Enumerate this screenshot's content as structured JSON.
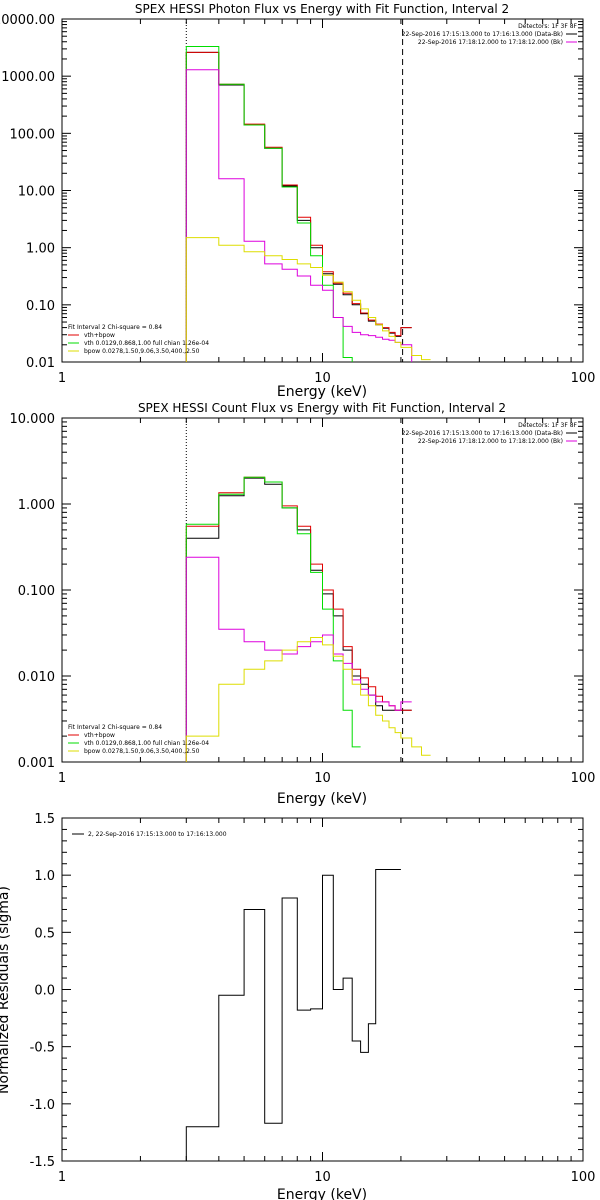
{
  "colors": {
    "total": "#000000",
    "model": "#e00000",
    "vth": "#00dd00",
    "bkg": "#dd00dd",
    "bpow": "#dddd00"
  },
  "chart_data": [
    {
      "type": "line",
      "scale": "log-log",
      "title": "SPEX HESSI Photon Flux vs Energy with Fit Function, Interval 2",
      "xlabel": "Energy (keV)",
      "ylabel": "",
      "xlim": [
        1,
        100
      ],
      "ylim": [
        0.01,
        10000
      ],
      "x_ticks": [
        "1",
        "10",
        "100"
      ],
      "y_ticks": [
        "10000.00",
        "1000.00",
        "100.00",
        "10.00",
        "1.00",
        "0.10",
        "0.01"
      ],
      "vlines": [
        3,
        20.3
      ],
      "legend_right": {
        "header": "Detectors: 1F 3F 8F",
        "lines": [
          "22-Sep-2016 17:15:13.000 to 17:16:13.000 (Data-Bk)",
          "22-Sep-2016 17:18:12.000 to 17:18:12.000 (Bk)"
        ]
      },
      "legend_left": {
        "header": "Fit Interval 2   Chi-square = 0.84",
        "lines": [
          "vth+bpow",
          "vth 0.0129,0.868,1.00  full chian 1.26e-04",
          "bpow 0.0278,1.50,9.06,3.50,400.,2.50"
        ]
      },
      "edges": [
        3.0,
        4.0,
        5.0,
        6.0,
        7.0,
        8.0,
        9.0,
        10.0,
        11.0,
        12.0,
        13.0,
        14.0,
        15.0,
        16.0,
        17.0,
        18.0,
        19.0,
        20.0,
        22.0,
        24.0,
        26.0
      ],
      "series": [
        {
          "key": "total",
          "color": "#000000",
          "values": [
            2600,
            700,
            140,
            55,
            12,
            3.0,
            1.0,
            0.35,
            0.23,
            0.15,
            0.1,
            0.07,
            0.052,
            0.045,
            0.039,
            0.032,
            0.028,
            0.04,
            null,
            null
          ]
        },
        {
          "key": "model",
          "color": "#e00000",
          "values": [
            2600,
            720,
            145,
            57,
            12.5,
            3.4,
            1.1,
            0.38,
            0.24,
            0.16,
            0.105,
            0.072,
            0.054,
            0.046,
            0.04,
            0.033,
            0.029,
            0.04,
            null,
            null
          ]
        },
        {
          "key": "vth",
          "color": "#00dd00",
          "values": [
            3300,
            720,
            140,
            55,
            11.5,
            2.7,
            0.72,
            0.22,
            0.06,
            0.012,
            0.006,
            null,
            null,
            null,
            null,
            null,
            null,
            null,
            null,
            null
          ]
        },
        {
          "key": "bkg",
          "color": "#dd00dd",
          "values": [
            1300,
            16,
            1.3,
            0.52,
            0.42,
            0.32,
            0.22,
            0.18,
            0.06,
            0.042,
            0.033,
            0.03,
            0.029,
            0.027,
            0.025,
            0.024,
            0.022,
            0.02,
            0.005,
            null
          ]
        },
        {
          "key": "bpow",
          "color": "#dddd00",
          "values": [
            1.5,
            1.1,
            0.85,
            0.72,
            0.62,
            0.52,
            0.45,
            0.33,
            0.25,
            0.17,
            0.12,
            0.085,
            0.06,
            0.045,
            0.035,
            0.028,
            0.022,
            0.018,
            0.013,
            0.011
          ]
        }
      ]
    },
    {
      "type": "line",
      "scale": "log-log",
      "title": "SPEX HESSI Count Flux vs Energy with Fit Function, Interval 2",
      "xlabel": "Energy (keV)",
      "ylabel": "",
      "xlim": [
        1,
        100
      ],
      "ylim": [
        0.001,
        10
      ],
      "x_ticks": [
        "1",
        "10",
        "100"
      ],
      "y_ticks": [
        "10.000",
        "1.000",
        "0.100",
        "0.010",
        "0.001"
      ],
      "vlines": [
        3,
        20.3
      ],
      "legend_right": {
        "header": "Detectors: 1F 3F 8F",
        "lines": [
          "22-Sep-2016 17:15:13.000 to 17:16:13.000 (Data-Bk)",
          "22-Sep-2016 17:18:12.000 to 17:18:12.000 (Bk)"
        ]
      },
      "legend_left": {
        "header": "Fit Interval 2   Chi-square = 0.84",
        "lines": [
          "vth+bpow",
          "vth 0.0129,0.868,1.00  full chian 1.26e-04",
          "bpow 0.0278,1.50,9.06,3.50,400.,2.50"
        ]
      },
      "edges": [
        3.0,
        4.0,
        5.0,
        6.0,
        7.0,
        8.0,
        9.0,
        10.0,
        11.0,
        12.0,
        13.0,
        14.0,
        15.0,
        16.0,
        17.0,
        18.0,
        19.0,
        20.0,
        22.0,
        24.0,
        26.0
      ],
      "series": [
        {
          "key": "total",
          "color": "#000000",
          "values": [
            0.4,
            1.25,
            2.0,
            1.7,
            0.9,
            0.5,
            0.17,
            0.09,
            0.05,
            0.02,
            0.01,
            0.008,
            0.006,
            0.0045,
            0.004,
            0.004,
            0.004,
            0.004,
            null,
            null
          ]
        },
        {
          "key": "model",
          "color": "#e00000",
          "values": [
            0.55,
            1.35,
            2.05,
            1.8,
            0.95,
            0.55,
            0.2,
            0.1,
            0.06,
            0.022,
            0.012,
            0.0095,
            0.0075,
            0.0058,
            0.005,
            0.0045,
            0.004,
            0.004,
            null,
            null
          ]
        },
        {
          "key": "vth",
          "color": "#00dd00",
          "values": [
            0.58,
            1.3,
            2.05,
            1.8,
            0.9,
            0.45,
            0.16,
            0.06,
            0.015,
            0.004,
            0.0015,
            null,
            null,
            null,
            null,
            null,
            null,
            null,
            null,
            null
          ]
        },
        {
          "key": "bkg",
          "color": "#dd00dd",
          "values": [
            0.24,
            0.035,
            0.025,
            0.02,
            0.018,
            0.022,
            0.025,
            0.03,
            0.018,
            0.014,
            0.009,
            0.007,
            0.006,
            0.005,
            0.005,
            0.0045,
            0.004,
            0.005,
            null,
            null
          ]
        },
        {
          "key": "bpow",
          "color": "#dddd00",
          "values": [
            0.002,
            0.008,
            0.012,
            0.015,
            0.02,
            0.025,
            0.028,
            0.023,
            0.017,
            0.012,
            0.008,
            0.006,
            0.0045,
            0.0035,
            0.003,
            0.0025,
            0.0022,
            0.0019,
            0.0015,
            0.0012
          ]
        }
      ]
    },
    {
      "type": "line",
      "scale": "log-linear",
      "title": "",
      "xlabel": "Energy (keV)",
      "ylabel": "Normalized Residuals (sigma)",
      "xlim": [
        1,
        100
      ],
      "ylim": [
        -1.5,
        1.5
      ],
      "x_ticks": [
        "1",
        "10",
        "100"
      ],
      "y_ticks": [
        "1.5",
        "1.0",
        "0.5",
        "0.0",
        "-0.5",
        "-1.0",
        "-1.5"
      ],
      "legend_right": null,
      "legend_left": {
        "header": "",
        "lines": [
          "2, 22-Sep-2016 17:15:13.000 to 17:16:13.000"
        ]
      },
      "edges": [
        3.0,
        4.0,
        5.0,
        6.0,
        7.0,
        8.0,
        9.0,
        10.0,
        11.0,
        12.0,
        13.0,
        14.0,
        15.0,
        16.0,
        17.0,
        18.0,
        19.0,
        20.0
      ],
      "series": [
        {
          "key": "residual",
          "color": "#000000",
          "values": [
            -1.2,
            -0.05,
            0.7,
            -1.17,
            0.8,
            -0.18,
            -0.17,
            1.0,
            0.0,
            0.1,
            -0.45,
            -0.55,
            -0.3,
            1.05,
            1.05,
            1.05,
            1.05
          ]
        }
      ]
    }
  ]
}
